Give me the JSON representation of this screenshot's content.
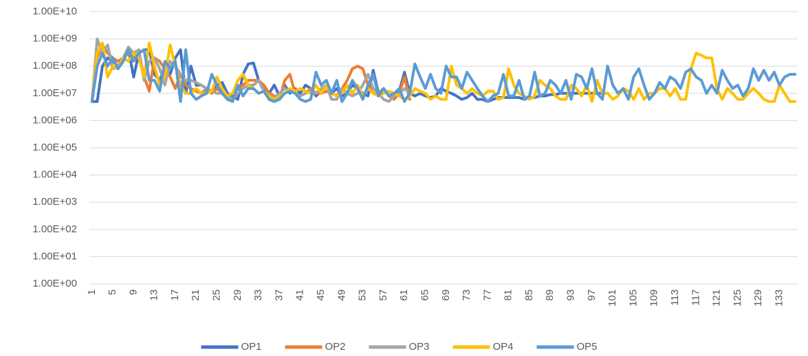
{
  "chart_data": {
    "type": "line",
    "log_scale": true,
    "grid": true,
    "legend": "bottom",
    "ylim": [
      1,
      10000000000
    ],
    "yticks": [
      {
        "value": 1,
        "label": "1.00E+00"
      },
      {
        "value": 10,
        "label": "1.00E+01"
      },
      {
        "value": 100,
        "label": "1.00E+02"
      },
      {
        "value": 1000,
        "label": "1.00E+03"
      },
      {
        "value": 10000,
        "label": "1.00E+04"
      },
      {
        "value": 100000,
        "label": "1.00E+05"
      },
      {
        "value": 1000000,
        "label": "1.00E+06"
      },
      {
        "value": 10000000,
        "label": "1.00E+07"
      },
      {
        "value": 100000000,
        "label": "1.00E+08"
      },
      {
        "value": 1000000000,
        "label": "1.00E+09"
      },
      {
        "value": 10000000000,
        "label": "1.00E+10"
      }
    ],
    "categories": [
      "1",
      null,
      null,
      null,
      "5",
      null,
      null,
      null,
      "9",
      null,
      null,
      null,
      "13",
      null,
      null,
      null,
      "17",
      null,
      null,
      null,
      "21",
      null,
      null,
      null,
      "25",
      null,
      null,
      null,
      "29",
      null,
      null,
      null,
      "33",
      null,
      null,
      null,
      "37",
      null,
      null,
      null,
      "41",
      null,
      null,
      null,
      "45",
      null,
      null,
      null,
      "49",
      null,
      null,
      null,
      "53",
      null,
      null,
      null,
      "57",
      null,
      null,
      null,
      "61",
      null,
      null,
      null,
      "65",
      null,
      null,
      null,
      "69",
      null,
      null,
      null,
      "73",
      null,
      null,
      null,
      "77",
      null,
      null,
      null,
      "81",
      null,
      null,
      null,
      "85",
      null,
      null,
      null,
      "89",
      null,
      null,
      null,
      "93",
      null,
      null,
      null,
      "97",
      null,
      null,
      null,
      "101",
      null,
      null,
      null,
      "105",
      null,
      null,
      null,
      "109",
      null,
      null,
      null,
      "113",
      null,
      null,
      null,
      "117",
      null,
      null,
      null,
      "121",
      null,
      null,
      null,
      "125",
      null,
      null,
      null,
      "129",
      null,
      null,
      null,
      "133",
      null,
      null,
      null
    ],
    "series": [
      {
        "name": "OP1",
        "color": "#4472c4",
        "values": [
          5000000.0,
          5000000.0,
          100000000.0,
          200000000.0,
          150000000.0,
          100000000.0,
          200000000.0,
          400000000.0,
          40000000.0,
          300000000.0,
          400000000.0,
          400000000.0,
          50000000.0,
          30000000.0,
          100000000.0,
          50000000.0,
          200000000.0,
          400000000.0,
          10000000.0,
          100000000.0,
          20000000.0,
          20000000.0,
          15000000.0,
          12000000.0,
          20000000.0,
          25000000.0,
          10000000.0,
          8000000.0,
          6000000.0,
          50000000.0,
          120000000.0,
          130000000.0,
          30000000.0,
          15000000.0,
          10000000.0,
          20000000.0,
          8000000.0,
          20000000.0,
          10000000.0,
          15000000.0,
          10000000.0,
          20000000.0,
          15000000.0,
          8000000.0,
          12000000.0,
          20000000.0,
          10000000.0,
          15000000.0,
          8000000.0,
          10000000.0,
          20000000.0,
          15000000.0,
          10000000.0,
          8000000.0,
          70000000.0,
          10000000.0,
          15000000.0,
          8000000.0,
          10000000.0,
          12000000.0,
          60000000.0,
          10000000.0,
          8000000.0,
          10000000.0,
          8000000.0,
          7000000.0,
          8000000.0,
          15000000.0,
          12000000.0,
          10000000.0,
          8000000.0,
          6000000.0,
          7000000.0,
          10000000.0,
          6000000.0,
          6000000.0,
          5000000.0,
          6000000.0,
          7000000.0,
          7000000.0,
          7000000.0,
          7000000.0,
          7000000.0,
          6000000.0,
          7000000.0,
          7000000.0,
          8000000.0,
          8000000.0,
          9000000.0,
          9000000.0,
          10000000.0,
          10000000.0,
          10000000.0,
          10000000.0,
          10000000.0,
          10000000.0,
          10000000.0,
          10000000.0,
          10000000.0,
          10000000.0,
          null,
          null,
          null,
          null,
          null,
          null,
          null,
          null,
          null,
          null,
          null,
          null,
          null,
          null,
          null,
          null,
          null,
          null,
          null,
          null,
          null,
          null,
          null,
          null,
          null,
          null,
          null,
          null,
          null,
          null,
          null,
          null,
          null,
          null,
          null,
          null
        ]
      },
      {
        "name": "OP2",
        "color": "#ed7d31",
        "values": [
          5000000.0,
          200000000.0,
          600000000.0,
          300000000.0,
          200000000.0,
          150000000.0,
          200000000.0,
          300000000.0,
          200000000.0,
          300000000.0,
          40000000.0,
          12000000.0,
          200000000.0,
          150000000.0,
          80000000.0,
          40000000.0,
          15000000.0,
          50000000.0,
          20000000.0,
          15000000.0,
          12000000.0,
          10000000.0,
          15000000.0,
          10000000.0,
          15000000.0,
          10000000.0,
          8000000.0,
          10000000.0,
          15000000.0,
          20000000.0,
          30000000.0,
          30000000.0,
          30000000.0,
          20000000.0,
          10000000.0,
          8000000.0,
          6000000.0,
          30000000.0,
          50000000.0,
          10000000.0,
          8000000.0,
          10000000.0,
          15000000.0,
          10000000.0,
          10000000.0,
          12000000.0,
          10000000.0,
          8000000.0,
          15000000.0,
          30000000.0,
          80000000.0,
          100000000.0,
          80000000.0,
          20000000.0,
          10000000.0,
          10000000.0,
          15000000.0,
          8000000.0,
          6000000.0,
          10000000.0,
          40000000.0,
          6000000.0,
          null,
          null,
          null,
          null,
          null,
          null,
          null,
          null,
          null,
          null,
          null,
          null,
          null,
          null,
          null,
          null,
          null,
          null,
          null,
          null,
          null,
          null,
          null,
          null,
          null,
          null,
          null,
          null,
          null,
          null,
          null,
          null,
          null,
          null,
          null,
          null,
          null,
          null,
          null,
          null,
          null,
          null,
          null,
          null,
          null,
          null,
          null,
          null,
          null,
          null,
          null,
          null,
          null,
          null,
          null,
          null,
          null,
          null,
          null,
          null,
          null,
          null,
          null,
          null,
          null,
          null,
          null,
          null,
          null,
          null,
          null,
          null,
          null,
          null
        ]
      },
      {
        "name": "OP3",
        "color": "#a5a5a5",
        "values": [
          5000000.0,
          1000000000.0,
          300000000.0,
          600000000.0,
          80000000.0,
          100000000.0,
          200000000.0,
          500000000.0,
          300000000.0,
          400000000.0,
          30000000.0,
          150000000.0,
          200000000.0,
          80000000.0,
          20000000.0,
          150000000.0,
          100000000.0,
          50000000.0,
          30000000.0,
          30000000.0,
          25000000.0,
          20000000.0,
          15000000.0,
          12000000.0,
          10000000.0,
          10000000.0,
          8000000.0,
          6000000.0,
          10000000.0,
          15000000.0,
          20000000.0,
          20000000.0,
          30000000.0,
          12000000.0,
          8000000.0,
          7000000.0,
          10000000.0,
          15000000.0,
          12000000.0,
          10000000.0,
          8000000.0,
          10000000.0,
          12000000.0,
          10000000.0,
          15000000.0,
          20000000.0,
          6000000.0,
          6000000.0,
          15000000.0,
          10000000.0,
          8000000.0,
          10000000.0,
          20000000.0,
          50000000.0,
          15000000.0,
          10000000.0,
          6000000.0,
          5000000.0,
          8000000.0,
          10000000.0,
          15000000.0,
          10000000.0,
          null,
          null,
          null,
          null,
          null,
          null,
          null,
          null,
          null,
          null,
          null,
          null,
          null,
          null,
          null,
          null,
          null,
          null,
          null,
          null,
          null,
          null,
          null,
          null,
          null,
          null,
          null,
          null,
          null,
          null,
          null,
          null,
          null,
          null,
          null,
          null,
          null,
          null,
          null,
          null,
          null,
          null,
          null,
          null,
          null,
          null,
          null,
          null,
          null,
          null,
          null,
          null,
          null,
          null,
          null,
          null,
          null,
          null,
          null,
          null,
          null,
          null,
          null,
          null,
          null,
          null,
          null,
          null,
          null,
          null,
          null,
          null,
          null,
          null
        ]
      },
      {
        "name": "OP4",
        "color": "#ffc000",
        "values": [
          5000000.0,
          300000000.0,
          700000000.0,
          40000000.0,
          100000000.0,
          80000000.0,
          200000000.0,
          150000000.0,
          300000000.0,
          200000000.0,
          40000000.0,
          700000000.0,
          100000000.0,
          20000000.0,
          40000000.0,
          600000000.0,
          100000000.0,
          20000000.0,
          10000000.0,
          10000000.0,
          15000000.0,
          10000000.0,
          10000000.0,
          12000000.0,
          40000000.0,
          15000000.0,
          8000000.0,
          10000000.0,
          30000000.0,
          50000000.0,
          20000000.0,
          15000000.0,
          10000000.0,
          12000000.0,
          8000000.0,
          6000000.0,
          8000000.0,
          10000000.0,
          15000000.0,
          12000000.0,
          15000000.0,
          12000000.0,
          10000000.0,
          20000000.0,
          10000000.0,
          20000000.0,
          10000000.0,
          8000000.0,
          10000000.0,
          20000000.0,
          10000000.0,
          20000000.0,
          8000000.0,
          15000000.0,
          10000000.0,
          8000000.0,
          10000000.0,
          12000000.0,
          10000000.0,
          8000000.0,
          6000000.0,
          8000000.0,
          15000000.0,
          12000000.0,
          10000000.0,
          6000000.0,
          8000000.0,
          6000000.0,
          6000000.0,
          100000000.0,
          20000000.0,
          15000000.0,
          10000000.0,
          15000000.0,
          10000000.0,
          8000000.0,
          12000000.0,
          12000000.0,
          6000000.0,
          7000000.0,
          80000000.0,
          20000000.0,
          10000000.0,
          8000000.0,
          6000000.0,
          8000000.0,
          30000000.0,
          20000000.0,
          15000000.0,
          8000000.0,
          6000000.0,
          6000000.0,
          20000000.0,
          15000000.0,
          8000000.0,
          20000000.0,
          5000000.0,
          30000000.0,
          10000000.0,
          10000000.0,
          6000000.0,
          8000000.0,
          15000000.0,
          12000000.0,
          6000000.0,
          15000000.0,
          6000000.0,
          10000000.0,
          10000000.0,
          15000000.0,
          15000000.0,
          8000000.0,
          15000000.0,
          6000000.0,
          6000000.0,
          80000000.0,
          300000000.0,
          250000000.0,
          200000000.0,
          200000000.0,
          15000000.0,
          6000000.0,
          15000000.0,
          10000000.0,
          6000000.0,
          6000000.0,
          10000000.0,
          15000000.0,
          10000000.0,
          6000000.0,
          5000000.0,
          5000000.0,
          20000000.0,
          10000000.0,
          5000000.0,
          5000000.0
        ]
      },
      {
        "name": "OP5",
        "color": "#5b9bd5",
        "values": [
          5000000.0,
          100000000.0,
          300000000.0,
          100000000.0,
          200000000.0,
          80000000.0,
          150000000.0,
          400000000.0,
          150000000.0,
          300000000.0,
          400000000.0,
          30000000.0,
          30000000.0,
          12000000.0,
          150000000.0,
          80000000.0,
          150000000.0,
          5000000.0,
          400000000.0,
          10000000.0,
          6000000.0,
          8000000.0,
          10000000.0,
          50000000.0,
          20000000.0,
          10000000.0,
          6000000.0,
          5000000.0,
          20000000.0,
          8000000.0,
          15000000.0,
          15000000.0,
          10000000.0,
          12000000.0,
          6000000.0,
          5000000.0,
          6000000.0,
          10000000.0,
          12000000.0,
          10000000.0,
          6000000.0,
          5000000.0,
          6000000.0,
          60000000.0,
          20000000.0,
          30000000.0,
          10000000.0,
          30000000.0,
          5000000.0,
          10000000.0,
          30000000.0,
          15000000.0,
          6000000.0,
          20000000.0,
          50000000.0,
          8000000.0,
          15000000.0,
          8000000.0,
          10000000.0,
          15000000.0,
          5000000.0,
          10000000.0,
          120000000.0,
          40000000.0,
          15000000.0,
          50000000.0,
          15000000.0,
          10000000.0,
          100000000.0,
          40000000.0,
          40000000.0,
          15000000.0,
          60000000.0,
          30000000.0,
          15000000.0,
          8000000.0,
          5000000.0,
          8000000.0,
          10000000.0,
          50000000.0,
          8000000.0,
          8000000.0,
          30000000.0,
          6000000.0,
          8000000.0,
          60000000.0,
          8000000.0,
          10000000.0,
          30000000.0,
          20000000.0,
          10000000.0,
          30000000.0,
          6000000.0,
          50000000.0,
          40000000.0,
          15000000.0,
          80000000.0,
          10000000.0,
          6000000.0,
          100000000.0,
          20000000.0,
          10000000.0,
          15000000.0,
          6000000.0,
          40000000.0,
          80000000.0,
          20000000.0,
          6000000.0,
          10000000.0,
          25000000.0,
          15000000.0,
          40000000.0,
          30000000.0,
          15000000.0,
          60000000.0,
          80000000.0,
          40000000.0,
          30000000.0,
          10000000.0,
          20000000.0,
          10000000.0,
          70000000.0,
          30000000.0,
          15000000.0,
          20000000.0,
          8000000.0,
          15000000.0,
          80000000.0,
          30000000.0,
          70000000.0,
          30000000.0,
          60000000.0,
          20000000.0,
          40000000.0,
          50000000.0,
          50000000.0
        ]
      }
    ]
  }
}
